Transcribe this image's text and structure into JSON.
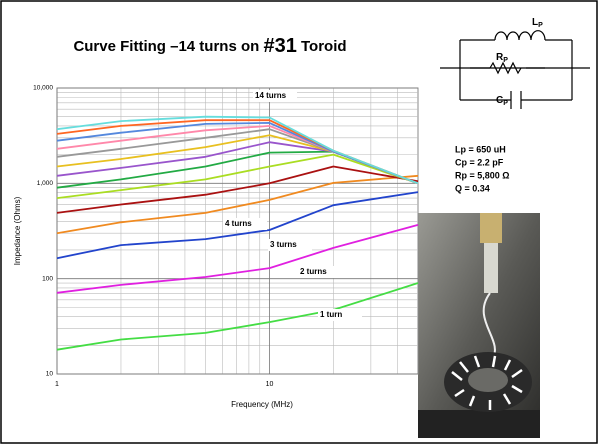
{
  "slide": {
    "title_parts": [
      "Curve Fitting –14 turns on ",
      "#31",
      " Toroid"
    ],
    "circuit": {
      "labels": [
        {
          "main": "L",
          "sub": "P"
        },
        {
          "main": "R",
          "sub": "P"
        },
        {
          "main": "C",
          "sub": "P"
        }
      ]
    },
    "parameters": [
      "Lp = 650 uH",
      "Cp = 2.2 pF",
      "Rp = 5,800 Ω",
      "Q = 0.34"
    ]
  },
  "chart_data": {
    "type": "line",
    "xlabel": "Frequency (MHz)",
    "ylabel": "Impedance (Ohms)",
    "log_x": true,
    "log_y": true,
    "grid": true,
    "x": [
      1,
      2,
      5,
      10,
      20,
      50
    ],
    "xlim": [
      1,
      50
    ],
    "ylim": [
      10,
      10000
    ],
    "xticks": [
      1,
      10
    ],
    "yticks": [
      10,
      100,
      {
        "value": 1000,
        "label": "1,000"
      },
      {
        "value": 10000,
        "label": "10,000"
      }
    ],
    "x_minor_grid": [
      2,
      3,
      4,
      5,
      6,
      7,
      8,
      9,
      20,
      30,
      40
    ],
    "y_minor_grid": [
      20,
      30,
      40,
      50,
      60,
      70,
      80,
      90,
      200,
      300,
      400,
      500,
      600,
      700,
      800,
      900,
      2000,
      3000,
      4000,
      5000,
      6000,
      7000,
      8000,
      9000
    ],
    "series": [
      {
        "name": "1 turn",
        "color": "#44dd44",
        "values": [
          18,
          23,
          27,
          35,
          47,
          90
        ]
      },
      {
        "name": "2 turns",
        "color": "#e020e0",
        "values": [
          71,
          86,
          104,
          129,
          210,
          366
        ]
      },
      {
        "name": "3 turns",
        "color": "#2244cc",
        "values": [
          164,
          225,
          260,
          324,
          590,
          810
        ]
      },
      {
        "name": "4 turns",
        "color": "#f08a20",
        "values": [
          300,
          390,
          490,
          670,
          1010,
          1200
        ]
      },
      {
        "color": "#aa1111",
        "values": [
          490,
          600,
          760,
          1000,
          1500,
          1050
        ]
      },
      {
        "color": "#aadd22",
        "values": [
          700,
          850,
          1100,
          1500,
          2000,
          1000
        ]
      },
      {
        "color": "#22aa44",
        "values": [
          900,
          1100,
          1500,
          2100,
          2150,
          1000
        ]
      },
      {
        "color": "#9955cc",
        "values": [
          1200,
          1450,
          1900,
          2700,
          2150,
          1000
        ]
      },
      {
        "color": "#e8c020",
        "values": [
          1500,
          1800,
          2400,
          3200,
          2150,
          1000
        ]
      },
      {
        "color": "#999999",
        "values": [
          1900,
          2300,
          3000,
          3700,
          2150,
          1000
        ]
      },
      {
        "color": "#ff88aa",
        "values": [
          2300,
          2800,
          3600,
          4000,
          2150,
          1000
        ]
      },
      {
        "color": "#5588dd",
        "values": [
          2800,
          3400,
          4200,
          4300,
          2150,
          1000
        ]
      },
      {
        "color": "#ff6622",
        "values": [
          3300,
          4000,
          4600,
          4600,
          2200,
          1000
        ]
      },
      {
        "name": "14 turns",
        "color": "#66dddd",
        "values": [
          3700,
          4500,
          5000,
          4900,
          2200,
          1000
        ]
      }
    ]
  }
}
